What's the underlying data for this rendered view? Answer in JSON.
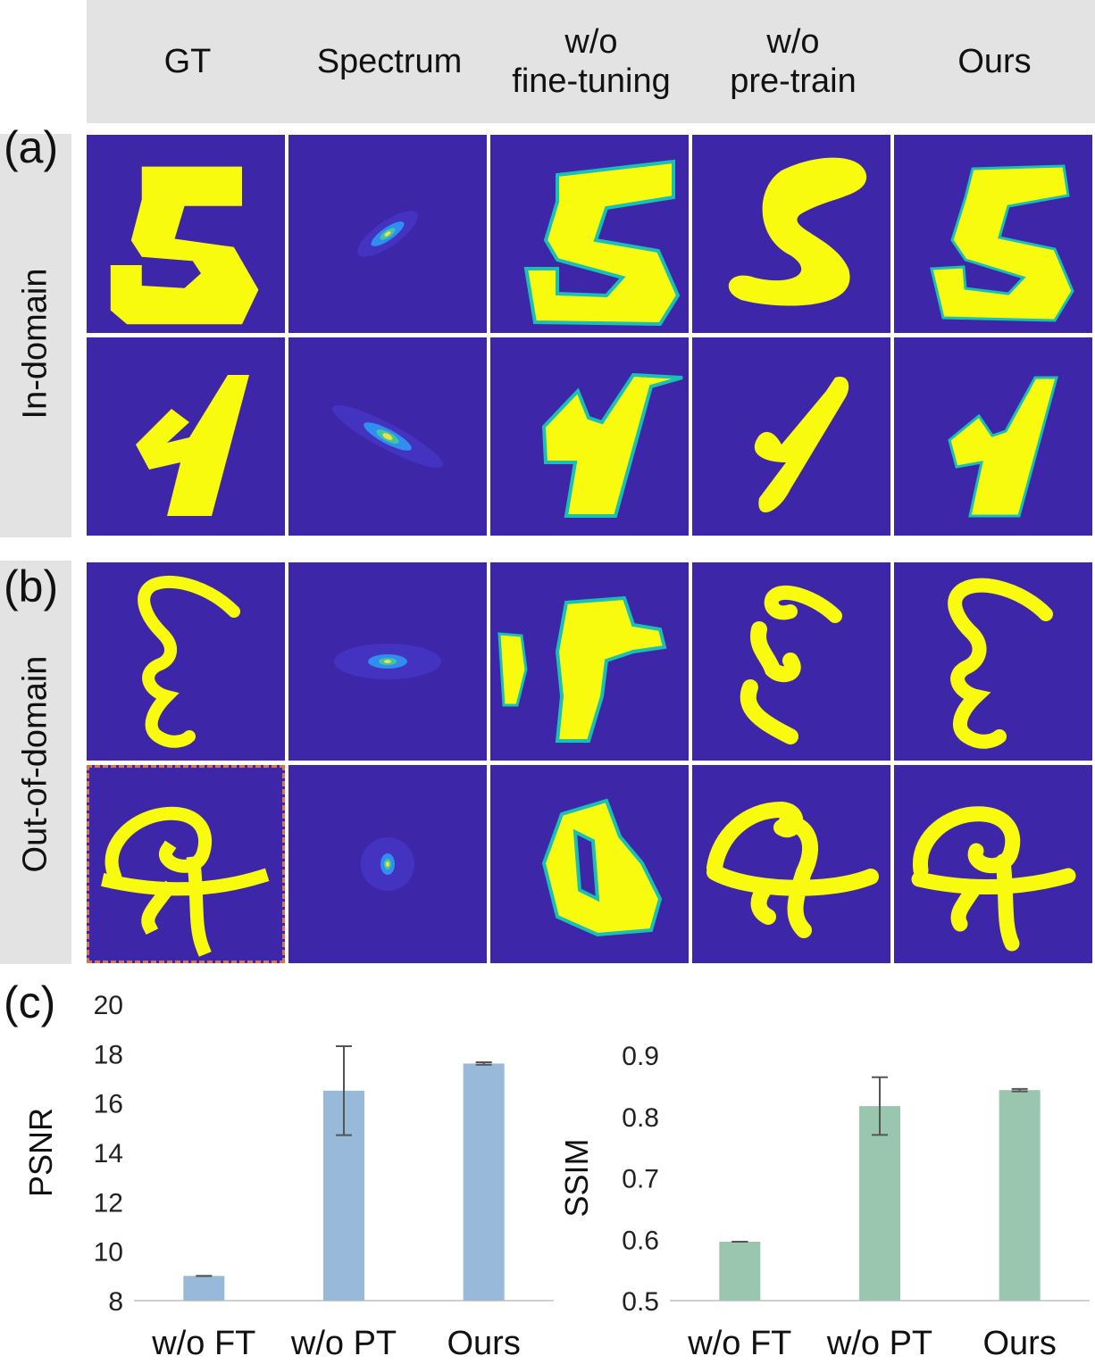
{
  "columns": [
    "GT",
    "Spectrum",
    "w/o\nfine-tuning",
    "w/o\npre-train",
    "Ours"
  ],
  "panels": {
    "a": {
      "letter": "(a)",
      "label": "In-domain"
    },
    "b": {
      "letter": "(b)",
      "label": "Out-of-domain"
    },
    "c": {
      "letter": "(c)"
    }
  },
  "colors": {
    "background": "#3e26a8",
    "digit": "#f9fb0e",
    "edge": "#19c0b4",
    "band": "#e3e3e3",
    "psnr_bar": "#99b9db",
    "ssim_bar": "#9ac6b0"
  },
  "chart_data": [
    {
      "type": "bar",
      "categories": [
        "w/o FT",
        "w/o PT",
        "Ours"
      ],
      "values": [
        9.0,
        16.5,
        17.6
      ],
      "errors": [
        0.0,
        1.8,
        0.05
      ],
      "title": "",
      "xlabel": "",
      "ylabel": "PSNR",
      "ylim": [
        8,
        20
      ],
      "yticks": [
        8,
        10,
        12,
        14,
        16,
        18,
        20
      ],
      "grid": false,
      "color": "#99b9db"
    },
    {
      "type": "bar",
      "categories": [
        "w/o FT",
        "w/o PT",
        "Ours"
      ],
      "values": [
        0.596,
        0.817,
        0.843
      ],
      "errors": [
        0.0,
        0.047,
        0.002
      ],
      "title": "",
      "xlabel": "",
      "ylabel": "SSIM",
      "ylim": [
        0.5,
        0.9
      ],
      "yticks": [
        0.5,
        0.6,
        0.7,
        0.8,
        0.9
      ],
      "grid": false,
      "color": "#9ac6b0"
    }
  ]
}
